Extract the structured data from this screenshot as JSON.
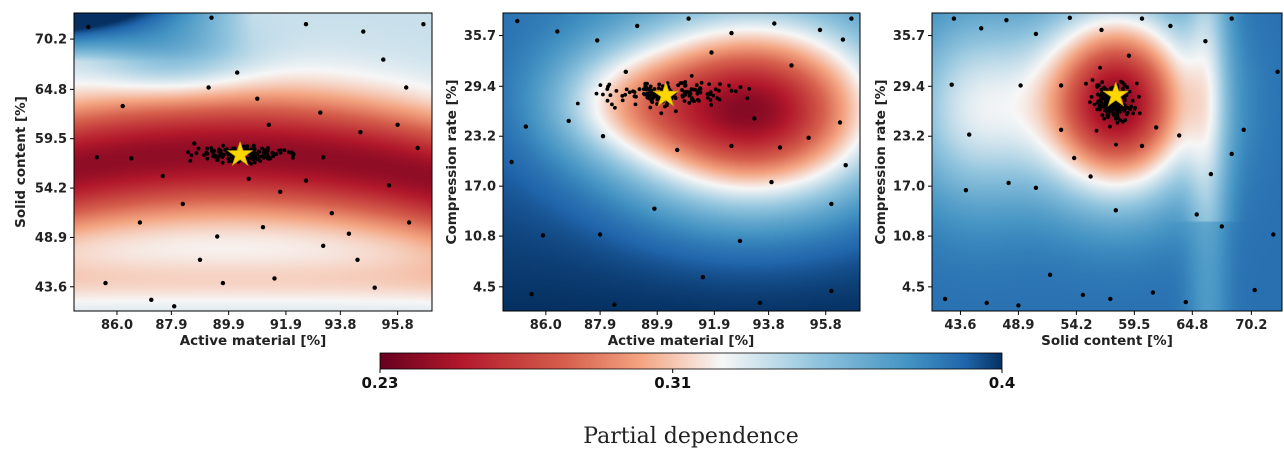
{
  "chart_data": [
    {
      "type": "heatmap",
      "title": "",
      "xlabel": "Active material [%]",
      "ylabel": "Solid content [%]",
      "xlim": [
        84.5,
        97.0
      ],
      "ylim": [
        41.0,
        73.0
      ],
      "x_ticks": [
        "86.0",
        "87.9",
        "89.9",
        "91.9",
        "93.8",
        "95.8"
      ],
      "y_ticks": [
        "43.6",
        "48.9",
        "54.2",
        "59.5",
        "64.8",
        "70.2"
      ],
      "optimum": {
        "x": 90.3,
        "y": 57.8,
        "marker": "star",
        "color": "#ffd700"
      },
      "dense_cluster": {
        "x": 90.3,
        "y": 57.8,
        "x_spread": 1.2,
        "y_spread": 0.8
      },
      "sample_points": [
        [
          85.0,
          71.5
        ],
        [
          86.2,
          63.0
        ],
        [
          85.3,
          57.5
        ],
        [
          87.6,
          55.5
        ],
        [
          88.3,
          52.5
        ],
        [
          86.8,
          50.5
        ],
        [
          88.9,
          46.5
        ],
        [
          89.7,
          44.0
        ],
        [
          87.2,
          42.2
        ],
        [
          90.2,
          66.6
        ],
        [
          90.9,
          63.8
        ],
        [
          91.3,
          61.0
        ],
        [
          92.1,
          58.0
        ],
        [
          93.2,
          57.5
        ],
        [
          91.7,
          53.8
        ],
        [
          93.5,
          51.5
        ],
        [
          94.4,
          46.5
        ],
        [
          93.2,
          48.0
        ],
        [
          95.3,
          68.0
        ],
        [
          96.1,
          65.0
        ],
        [
          95.8,
          61.0
        ],
        [
          96.5,
          58.5
        ],
        [
          95.5,
          54.5
        ],
        [
          96.2,
          50.5
        ],
        [
          95.0,
          43.5
        ],
        [
          94.6,
          71.0
        ],
        [
          89.3,
          72.5
        ],
        [
          92.6,
          71.8
        ],
        [
          94.5,
          60.2
        ],
        [
          92.6,
          55.0
        ],
        [
          90.6,
          55.2
        ],
        [
          88.7,
          59.0
        ],
        [
          86.5,
          57.4
        ],
        [
          89.5,
          49.0
        ],
        [
          91.5,
          44.5
        ],
        [
          96.7,
          71.8
        ],
        [
          88.0,
          41.5
        ],
        [
          93.1,
          62.3
        ],
        [
          89.2,
          65.0
        ],
        [
          85.6,
          44.0
        ],
        [
          94.1,
          49.3
        ],
        [
          91.1,
          50.0
        ]
      ]
    },
    {
      "type": "heatmap",
      "title": "",
      "xlabel": "Active material [%]",
      "ylabel": "Compression rate [%]",
      "xlim": [
        84.5,
        97.0
      ],
      "ylim": [
        1.5,
        38.5
      ],
      "x_ticks": [
        "86.0",
        "87.9",
        "89.9",
        "91.9",
        "93.8",
        "95.8"
      ],
      "y_ticks": [
        "4.5",
        "10.8",
        "17.0",
        "23.2",
        "29.4",
        "35.7"
      ],
      "optimum": {
        "x": 90.2,
        "y": 28.3,
        "marker": "star",
        "color": "#ffd700"
      },
      "dense_cluster": {
        "x": 90.3,
        "y": 28.6,
        "x_spread": 1.8,
        "y_spread": 1.4
      },
      "sample_points": [
        [
          85.0,
          37.5
        ],
        [
          86.4,
          36.2
        ],
        [
          87.8,
          35.1
        ],
        [
          89.2,
          36.9
        ],
        [
          91.0,
          37.8
        ],
        [
          92.5,
          36.0
        ],
        [
          94.0,
          37.2
        ],
        [
          95.6,
          36.4
        ],
        [
          96.4,
          35.2
        ],
        [
          96.7,
          37.8
        ],
        [
          85.3,
          24.4
        ],
        [
          86.8,
          25.1
        ],
        [
          88.0,
          23.2
        ],
        [
          92.5,
          22.0
        ],
        [
          93.3,
          25.4
        ],
        [
          94.2,
          21.8
        ],
        [
          95.2,
          23.0
        ],
        [
          96.3,
          24.9
        ],
        [
          96.5,
          19.6
        ],
        [
          93.9,
          17.5
        ],
        [
          96.0,
          14.8
        ],
        [
          89.8,
          14.2
        ],
        [
          87.9,
          11.0
        ],
        [
          92.8,
          10.2
        ],
        [
          91.5,
          5.7
        ],
        [
          96.0,
          4.0
        ],
        [
          93.5,
          2.5
        ],
        [
          85.5,
          3.6
        ],
        [
          85.9,
          10.9
        ],
        [
          88.4,
          2.3
        ],
        [
          90.6,
          21.5
        ],
        [
          91.8,
          33.6
        ],
        [
          88.8,
          31.2
        ],
        [
          94.6,
          32.0
        ],
        [
          84.8,
          20.0
        ]
      ]
    },
    {
      "type": "heatmap",
      "title": "",
      "xlabel": "Solid content [%]",
      "ylabel": "Compression rate [%]",
      "xlim": [
        41.0,
        73.0
      ],
      "ylim": [
        1.5,
        38.5
      ],
      "x_ticks": [
        "43.6",
        "48.9",
        "54.2",
        "59.5",
        "64.8",
        "70.2"
      ],
      "y_ticks": [
        "4.5",
        "10.8",
        "17.0",
        "23.2",
        "29.4",
        "35.7"
      ],
      "optimum": {
        "x": 57.8,
        "y": 28.3,
        "marker": "star",
        "color": "#ffd700"
      },
      "dense_cluster": {
        "x": 57.5,
        "y": 27.4,
        "x_spread": 1.6,
        "y_spread": 2.5
      },
      "sample_points": [
        [
          43.0,
          37.8
        ],
        [
          45.5,
          36.6
        ],
        [
          47.8,
          37.6
        ],
        [
          50.5,
          35.9
        ],
        [
          53.6,
          37.9
        ],
        [
          56.5,
          36.4
        ],
        [
          60.2,
          37.8
        ],
        [
          62.8,
          36.9
        ],
        [
          66.0,
          35.0
        ],
        [
          68.4,
          37.8
        ],
        [
          42.8,
          29.6
        ],
        [
          49.1,
          29.5
        ],
        [
          44.4,
          23.4
        ],
        [
          44.1,
          16.5
        ],
        [
          48.0,
          17.4
        ],
        [
          50.5,
          16.8
        ],
        [
          52.8,
          24.0
        ],
        [
          54.0,
          20.5
        ],
        [
          55.5,
          18.2
        ],
        [
          57.8,
          14.0
        ],
        [
          60.2,
          22.0
        ],
        [
          61.5,
          24.3
        ],
        [
          63.6,
          23.3
        ],
        [
          66.5,
          18.5
        ],
        [
          68.4,
          21.0
        ],
        [
          69.5,
          24.0
        ],
        [
          65.2,
          13.5
        ],
        [
          67.5,
          12.0
        ],
        [
          72.2,
          11.0
        ],
        [
          51.8,
          6.0
        ],
        [
          54.8,
          3.5
        ],
        [
          57.3,
          3.0
        ],
        [
          61.2,
          3.8
        ],
        [
          64.2,
          2.6
        ],
        [
          42.2,
          3.0
        ],
        [
          46.0,
          2.5
        ],
        [
          48.9,
          2.2
        ],
        [
          70.5,
          4.1
        ],
        [
          72.6,
          31.2
        ],
        [
          52.8,
          29.5
        ],
        [
          59.0,
          33.2
        ]
      ]
    }
  ],
  "colorbar": {
    "min": 0.23,
    "max": 0.4,
    "ticks": [
      {
        "value": 0.23,
        "label": "0.23"
      },
      {
        "value": 0.31,
        "label": "0.31"
      },
      {
        "value": 0.4,
        "label": "0.4"
      }
    ],
    "label": "Partial dependence",
    "colormap": "RdBu"
  },
  "colors": {
    "dark_red": "#67001f",
    "red": "#b2182b",
    "light_red": "#f4a582",
    "neutral": "#f7f7f7",
    "light_blue": "#92c5de",
    "blue": "#2166ac",
    "dark_blue": "#053061",
    "point": "#000000",
    "star": "#ffd700"
  }
}
